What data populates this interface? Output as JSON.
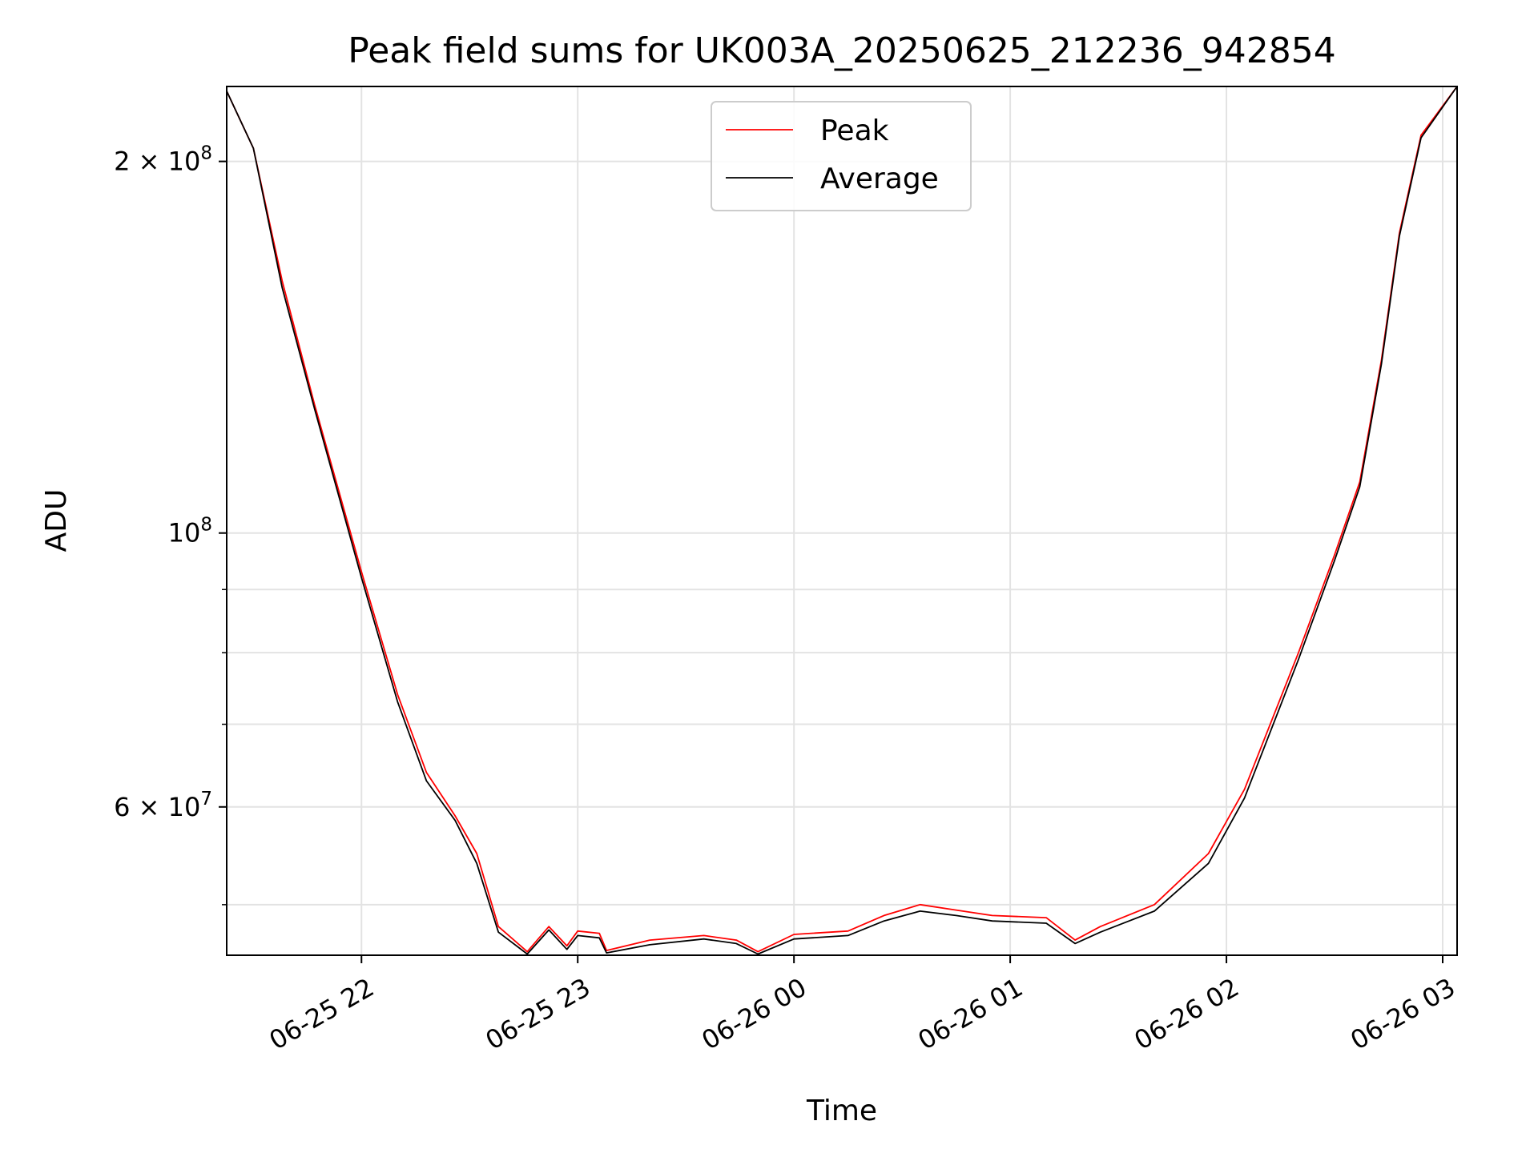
{
  "chart_data": {
    "type": "line",
    "title": "Peak field sums for UK003A_20250625_212236_942854",
    "xlabel": "Time",
    "ylabel": "ADU",
    "x_scale": "time",
    "y_scale": "log",
    "xlim": [
      "2025-06-25 21:22:36",
      "2025-06-26 03:04:00"
    ],
    "ylim": [
      45500000,
      230000000
    ],
    "grid": true,
    "legend": "top-center",
    "x_ticks": [
      {
        "t": "2025-06-25 22:00:00",
        "label": "06-25 22"
      },
      {
        "t": "2025-06-25 23:00:00",
        "label": "06-25 23"
      },
      {
        "t": "2025-06-26 00:00:00",
        "label": "06-26 00"
      },
      {
        "t": "2025-06-26 01:00:00",
        "label": "06-26 01"
      },
      {
        "t": "2025-06-26 02:00:00",
        "label": "06-26 02"
      },
      {
        "t": "2025-06-26 03:00:00",
        "label": "06-26 03"
      }
    ],
    "y_ticks": [
      {
        "v": 200000000,
        "base": "2 × 10",
        "exp": "8"
      },
      {
        "v": 100000000,
        "base": "10",
        "exp": "8"
      },
      {
        "v": 60000000,
        "base": "6 × 10",
        "exp": "7"
      }
    ],
    "y_minor_ticks": [
      50000000,
      70000000,
      80000000,
      90000000
    ],
    "series": [
      {
        "name": "Peak",
        "color": "#ff0000",
        "points": [
          [
            "2025-06-25 21:22:36",
            228000000
          ],
          [
            "2025-06-25 21:30:00",
            205000000
          ],
          [
            "2025-06-25 21:38:00",
            160000000
          ],
          [
            "2025-06-25 21:47:00",
            127000000
          ],
          [
            "2025-06-25 22:00:00",
            93000000
          ],
          [
            "2025-06-25 22:10:00",
            74000000
          ],
          [
            "2025-06-25 22:18:00",
            64000000
          ],
          [
            "2025-06-25 22:26:00",
            59000000
          ],
          [
            "2025-06-25 22:32:00",
            55000000
          ],
          [
            "2025-06-25 22:38:00",
            48000000
          ],
          [
            "2025-06-25 22:46:00",
            45800000
          ],
          [
            "2025-06-25 22:52:00",
            48000000
          ],
          [
            "2025-06-25 22:57:00",
            46300000
          ],
          [
            "2025-06-25 23:00:00",
            47600000
          ],
          [
            "2025-06-25 23:06:00",
            47400000
          ],
          [
            "2025-06-25 23:08:00",
            45900000
          ],
          [
            "2025-06-25 23:20:00",
            46800000
          ],
          [
            "2025-06-25 23:35:00",
            47200000
          ],
          [
            "2025-06-25 23:44:00",
            46800000
          ],
          [
            "2025-06-25 23:50:00",
            45800000
          ],
          [
            "2025-06-26 00:00:00",
            47300000
          ],
          [
            "2025-06-26 00:15:00",
            47600000
          ],
          [
            "2025-06-26 00:25:00",
            49000000
          ],
          [
            "2025-06-26 00:35:00",
            50000000
          ],
          [
            "2025-06-26 00:45:00",
            49500000
          ],
          [
            "2025-06-26 00:55:00",
            49000000
          ],
          [
            "2025-06-26 01:10:00",
            48800000
          ],
          [
            "2025-06-26 01:18:00",
            46800000
          ],
          [
            "2025-06-26 01:25:00",
            48000000
          ],
          [
            "2025-06-26 01:40:00",
            50000000
          ],
          [
            "2025-06-26 01:55:00",
            55000000
          ],
          [
            "2025-06-26 02:05:00",
            62000000
          ],
          [
            "2025-06-26 02:20:00",
            80000000
          ],
          [
            "2025-06-26 02:30:00",
            96000000
          ],
          [
            "2025-06-26 02:37:00",
            110000000
          ],
          [
            "2025-06-26 02:43:00",
            138000000
          ],
          [
            "2025-06-26 02:48:00",
            175000000
          ],
          [
            "2025-06-26 02:54:00",
            210000000
          ],
          [
            "2025-06-26 03:04:00",
            230000000
          ]
        ]
      },
      {
        "name": "Average",
        "color": "#000000",
        "points": [
          [
            "2025-06-25 21:22:36",
            228000000
          ],
          [
            "2025-06-25 21:30:00",
            205000000
          ],
          [
            "2025-06-25 21:38:00",
            158000000
          ],
          [
            "2025-06-25 21:47:00",
            126000000
          ],
          [
            "2025-06-25 22:00:00",
            92000000
          ],
          [
            "2025-06-25 22:10:00",
            73000000
          ],
          [
            "2025-06-25 22:18:00",
            63000000
          ],
          [
            "2025-06-25 22:26:00",
            58500000
          ],
          [
            "2025-06-25 22:32:00",
            54000000
          ],
          [
            "2025-06-25 22:38:00",
            47500000
          ],
          [
            "2025-06-25 22:46:00",
            45600000
          ],
          [
            "2025-06-25 22:52:00",
            47700000
          ],
          [
            "2025-06-25 22:57:00",
            46000000
          ],
          [
            "2025-06-25 23:00:00",
            47200000
          ],
          [
            "2025-06-25 23:06:00",
            47000000
          ],
          [
            "2025-06-25 23:08:00",
            45700000
          ],
          [
            "2025-06-25 23:20:00",
            46400000
          ],
          [
            "2025-06-25 23:35:00",
            46900000
          ],
          [
            "2025-06-25 23:44:00",
            46500000
          ],
          [
            "2025-06-25 23:50:00",
            45600000
          ],
          [
            "2025-06-26 00:00:00",
            46900000
          ],
          [
            "2025-06-26 00:15:00",
            47200000
          ],
          [
            "2025-06-26 00:25:00",
            48500000
          ],
          [
            "2025-06-26 00:35:00",
            49400000
          ],
          [
            "2025-06-26 00:45:00",
            49000000
          ],
          [
            "2025-06-26 00:55:00",
            48500000
          ],
          [
            "2025-06-26 01:10:00",
            48300000
          ],
          [
            "2025-06-26 01:18:00",
            46500000
          ],
          [
            "2025-06-26 01:25:00",
            47500000
          ],
          [
            "2025-06-26 01:40:00",
            49400000
          ],
          [
            "2025-06-26 01:55:00",
            54000000
          ],
          [
            "2025-06-26 02:05:00",
            61000000
          ],
          [
            "2025-06-26 02:20:00",
            79000000
          ],
          [
            "2025-06-26 02:30:00",
            95000000
          ],
          [
            "2025-06-26 02:37:00",
            109000000
          ],
          [
            "2025-06-26 02:43:00",
            137000000
          ],
          [
            "2025-06-26 02:48:00",
            174000000
          ],
          [
            "2025-06-26 02:54:00",
            209000000
          ],
          [
            "2025-06-26 03:04:00",
            230000000
          ]
        ]
      }
    ]
  }
}
